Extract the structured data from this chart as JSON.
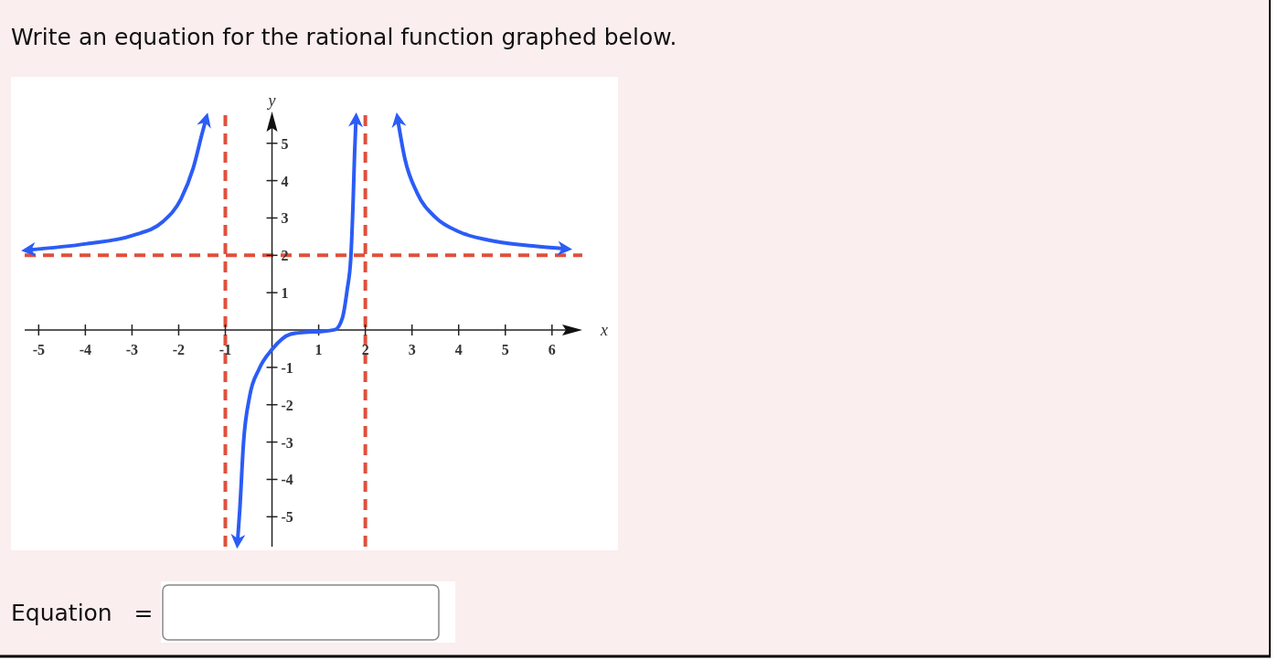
{
  "chart_data": {
    "type": "line",
    "title": "Write an equation for the rational function graphed below.",
    "xlabel": "x",
    "ylabel": "y",
    "annotations": [
      "Equation ="
    ],
    "xlim": [
      -5.3,
      6.65
    ],
    "ylim": [
      -5.8,
      5.85
    ],
    "xticks": [
      -5,
      -4,
      -3,
      -2,
      -1,
      1,
      2,
      3,
      4,
      5,
      6
    ],
    "yticks": [
      -5,
      -4,
      -3,
      -2,
      -1,
      1,
      2,
      3,
      4,
      5
    ],
    "grid": false,
    "marker": "none",
    "line_style": "solid",
    "series": [
      {
        "color": "#2b5cf6",
        "x": [
          -5.25,
          -3.97,
          -2.99,
          -2.34,
          -1.95,
          -1.69,
          -1.49,
          -1.41
        ],
        "values": [
          2.14,
          2.31,
          2.53,
          2.9,
          3.51,
          4.33,
          5.3,
          5.67
        ]
      },
      {
        "color": "#2b5cf6",
        "x": [
          -0.74,
          -0.69,
          -0.61,
          -0.48,
          -0.28,
          0,
          0.4,
          0.7,
          1.02,
          1.35,
          1.51,
          1.61,
          1.69,
          1.74,
          1.77,
          1.8
        ],
        "values": [
          -5.7,
          -4.8,
          -3.01,
          -1.78,
          -1.05,
          -0.52,
          -0.11,
          -0.06,
          -0.04,
          0.01,
          0.33,
          1.07,
          1.96,
          3.51,
          4.74,
          5.67
        ]
      },
      {
        "color": "#2b5cf6",
        "x": [
          2.69,
          2.85,
          3.11,
          3.5,
          4.03,
          4.81,
          5.59,
          6.31
        ],
        "values": [
          5.67,
          4.57,
          3.67,
          3.02,
          2.62,
          2.37,
          2.25,
          2.17
        ]
      }
    ],
    "ref_lines": [
      {
        "axis": "x",
        "value": -1,
        "color": "#e0503c",
        "line_style": "dashed"
      },
      {
        "axis": "x",
        "value": 2,
        "color": "#e0503c",
        "line_style": "dashed"
      },
      {
        "axis": "y",
        "value": 2,
        "color": "#e0503c",
        "line_style": "dashed"
      }
    ]
  }
}
